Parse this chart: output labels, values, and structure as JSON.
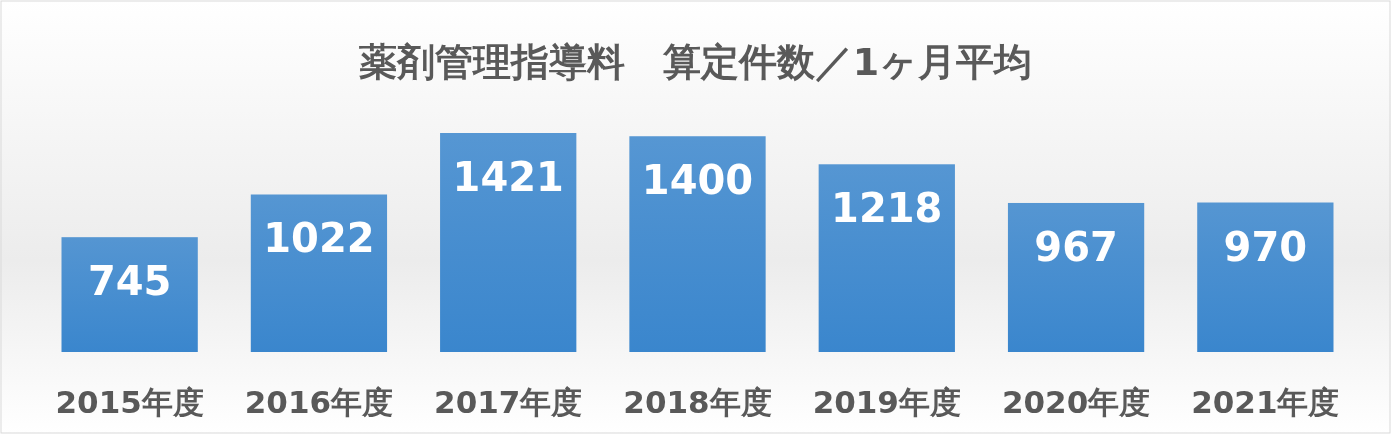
{
  "chart_data": {
    "type": "bar",
    "title": "薬剤管理指導料　算定件数／1ヶ月平均",
    "categories": [
      "2015年度",
      "2016年度",
      "2017年度",
      "2018年度",
      "2019年度",
      "2020年度",
      "2021年度"
    ],
    "values": [
      745,
      1022,
      1421,
      1400,
      1218,
      967,
      970
    ],
    "color": "#3a86cd",
    "data_labels": true
  }
}
